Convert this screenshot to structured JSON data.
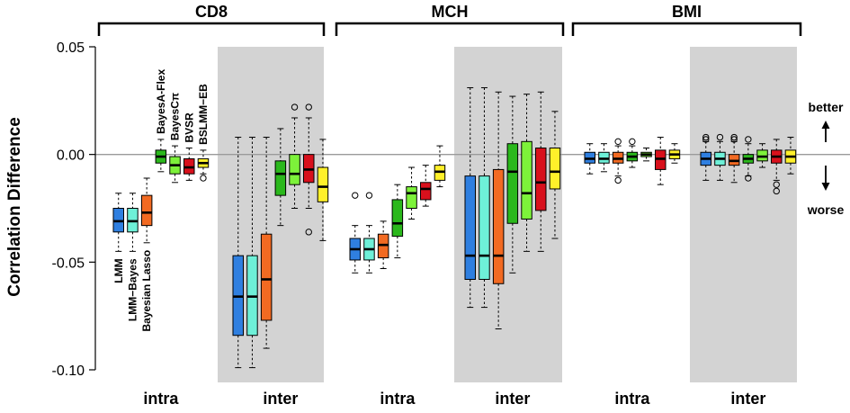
{
  "chart_data": {
    "type": "boxplot",
    "ylabel": "Correlation Difference",
    "ylim": [
      -0.1,
      0.05
    ],
    "yticks": [
      {
        "value": 0.05,
        "label": "0.05"
      },
      {
        "value": 0.0,
        "label": "0.00"
      },
      {
        "value": -0.05,
        "label": "-0.05"
      },
      {
        "value": -0.1,
        "label": "-0.10"
      }
    ],
    "reference_line": 0.0,
    "annotations": {
      "better": "better",
      "worse": "worse"
    },
    "methods": [
      {
        "name": "LMM",
        "color": "#2f7fe0"
      },
      {
        "name": "LMM−Bayes",
        "color": "#6ef0d8"
      },
      {
        "name": "Bayesian Lasso",
        "color": "#f26a22"
      },
      {
        "name": "BayesA-Flex",
        "color": "#2bb81c"
      },
      {
        "name": "BayesCπ",
        "color": "#7df23a"
      },
      {
        "name": "BVSR",
        "color": "#d8101c"
      },
      {
        "name": "BSLMM−EB",
        "color": "#fff02a"
      }
    ],
    "traits": [
      {
        "name": "CD8",
        "groups": [
          {
            "name": "intra",
            "shaded": false,
            "boxes": [
              {
                "min": -0.045,
                "q1": -0.036,
                "median": -0.031,
                "q3": -0.025,
                "max": -0.018,
                "outliers": []
              },
              {
                "min": -0.045,
                "q1": -0.036,
                "median": -0.031,
                "q3": -0.025,
                "max": -0.018,
                "outliers": []
              },
              {
                "min": -0.041,
                "q1": -0.033,
                "median": -0.027,
                "q3": -0.019,
                "max": -0.011,
                "outliers": []
              },
              {
                "min": -0.008,
                "q1": -0.004,
                "median": -0.001,
                "q3": 0.002,
                "max": 0.007,
                "outliers": []
              },
              {
                "min": -0.013,
                "q1": -0.009,
                "median": -0.005,
                "q3": -0.001,
                "max": 0.004,
                "outliers": []
              },
              {
                "min": -0.012,
                "q1": -0.009,
                "median": -0.006,
                "q3": -0.002,
                "max": 0.003,
                "outliers": []
              },
              {
                "min": -0.009,
                "q1": -0.006,
                "median": -0.004,
                "q3": -0.002,
                "max": 0.002,
                "outliers": [
                  -0.011
                ]
              }
            ]
          },
          {
            "name": "inter",
            "shaded": true,
            "boxes": [
              {
                "min": -0.099,
                "q1": -0.084,
                "median": -0.066,
                "q3": -0.047,
                "max": 0.008,
                "outliers": []
              },
              {
                "min": -0.099,
                "q1": -0.084,
                "median": -0.066,
                "q3": -0.047,
                "max": 0.008,
                "outliers": []
              },
              {
                "min": -0.09,
                "q1": -0.077,
                "median": -0.058,
                "q3": -0.037,
                "max": 0.008,
                "outliers": []
              },
              {
                "min": -0.033,
                "q1": -0.019,
                "median": -0.009,
                "q3": -0.003,
                "max": 0.012,
                "outliers": []
              },
              {
                "min": -0.025,
                "q1": -0.014,
                "median": -0.009,
                "q3": 0.0,
                "max": 0.017,
                "outliers": [
                  0.022
                ]
              },
              {
                "min": -0.025,
                "q1": -0.013,
                "median": -0.007,
                "q3": 0.0,
                "max": 0.017,
                "outliers": [
                  0.022,
                  -0.036
                ]
              },
              {
                "min": -0.04,
                "q1": -0.022,
                "median": -0.015,
                "q3": -0.006,
                "max": 0.007,
                "outliers": []
              }
            ]
          }
        ]
      },
      {
        "name": "MCH",
        "groups": [
          {
            "name": "intra",
            "shaded": false,
            "boxes": [
              {
                "min": -0.055,
                "q1": -0.049,
                "median": -0.044,
                "q3": -0.039,
                "max": -0.033,
                "outliers": [
                  -0.019
                ]
              },
              {
                "min": -0.055,
                "q1": -0.049,
                "median": -0.044,
                "q3": -0.039,
                "max": -0.033,
                "outliers": [
                  -0.019
                ]
              },
              {
                "min": -0.053,
                "q1": -0.048,
                "median": -0.042,
                "q3": -0.037,
                "max": -0.031,
                "outliers": []
              },
              {
                "min": -0.048,
                "q1": -0.038,
                "median": -0.032,
                "q3": -0.021,
                "max": -0.014,
                "outliers": []
              },
              {
                "min": -0.03,
                "q1": -0.025,
                "median": -0.018,
                "q3": -0.015,
                "max": -0.006,
                "outliers": []
              },
              {
                "min": -0.024,
                "q1": -0.021,
                "median": -0.016,
                "q3": -0.013,
                "max": -0.005,
                "outliers": []
              },
              {
                "min": -0.015,
                "q1": -0.012,
                "median": -0.008,
                "q3": -0.005,
                "max": 0.004,
                "outliers": []
              }
            ]
          },
          {
            "name": "inter",
            "shaded": true,
            "boxes": [
              {
                "min": -0.071,
                "q1": -0.058,
                "median": -0.047,
                "q3": -0.01,
                "max": 0.031,
                "outliers": []
              },
              {
                "min": -0.071,
                "q1": -0.058,
                "median": -0.047,
                "q3": -0.01,
                "max": 0.031,
                "outliers": []
              },
              {
                "min": -0.081,
                "q1": -0.06,
                "median": -0.047,
                "q3": -0.007,
                "max": 0.029,
                "outliers": []
              },
              {
                "min": -0.055,
                "q1": -0.032,
                "median": -0.008,
                "q3": 0.005,
                "max": 0.027,
                "outliers": []
              },
              {
                "min": -0.045,
                "q1": -0.03,
                "median": -0.018,
                "q3": 0.006,
                "max": 0.028,
                "outliers": []
              },
              {
                "min": -0.045,
                "q1": -0.026,
                "median": -0.013,
                "q3": 0.003,
                "max": 0.029,
                "outliers": []
              },
              {
                "min": -0.039,
                "q1": -0.016,
                "median": -0.008,
                "q3": 0.003,
                "max": 0.02,
                "outliers": []
              }
            ]
          }
        ]
      },
      {
        "name": "BMI",
        "groups": [
          {
            "name": "intra",
            "shaded": false,
            "boxes": [
              {
                "min": -0.009,
                "q1": -0.004,
                "median": -0.002,
                "q3": 0.001,
                "max": 0.005,
                "outliers": []
              },
              {
                "min": -0.008,
                "q1": -0.004,
                "median": -0.002,
                "q3": 0.001,
                "max": 0.005,
                "outliers": []
              },
              {
                "min": -0.01,
                "q1": -0.004,
                "median": -0.002,
                "q3": 0.001,
                "max": 0.004,
                "outliers": [
                  0.006,
                  -0.012
                ]
              },
              {
                "min": -0.006,
                "q1": -0.003,
                "median": -0.001,
                "q3": 0.001,
                "max": 0.004,
                "outliers": [
                  0.006
                ]
              },
              {
                "min": -0.003,
                "q1": -0.001,
                "median": 0.0,
                "q3": 0.001,
                "max": 0.003,
                "outliers": []
              },
              {
                "min": -0.014,
                "q1": -0.007,
                "median": -0.002,
                "q3": 0.002,
                "max": 0.008,
                "outliers": []
              },
              {
                "min": -0.004,
                "q1": -0.002,
                "median": 0.0,
                "q3": 0.002,
                "max": 0.005,
                "outliers": []
              }
            ]
          },
          {
            "name": "inter",
            "shaded": true,
            "boxes": [
              {
                "min": -0.012,
                "q1": -0.005,
                "median": -0.002,
                "q3": 0.001,
                "max": 0.006,
                "outliers": [
                  0.007,
                  0.008
                ]
              },
              {
                "min": -0.012,
                "q1": -0.005,
                "median": -0.002,
                "q3": 0.001,
                "max": 0.006,
                "outliers": [
                  0.008
                ]
              },
              {
                "min": -0.013,
                "q1": -0.005,
                "median": -0.003,
                "q3": 0.0,
                "max": 0.006,
                "outliers": [
                  0.007,
                  0.008
                ]
              },
              {
                "min": -0.01,
                "q1": -0.004,
                "median": -0.002,
                "q3": 0.0,
                "max": 0.005,
                "outliers": [
                  0.007,
                  -0.011
                ]
              },
              {
                "min": -0.006,
                "q1": -0.003,
                "median": -0.001,
                "q3": 0.002,
                "max": 0.005,
                "outliers": []
              },
              {
                "min": -0.012,
                "q1": -0.004,
                "median": -0.001,
                "q3": 0.002,
                "max": 0.007,
                "outliers": [
                  -0.014,
                  -0.017
                ]
              },
              {
                "min": -0.009,
                "q1": -0.004,
                "median": -0.001,
                "q3": 0.002,
                "max": 0.008,
                "outliers": []
              }
            ]
          }
        ]
      }
    ]
  }
}
